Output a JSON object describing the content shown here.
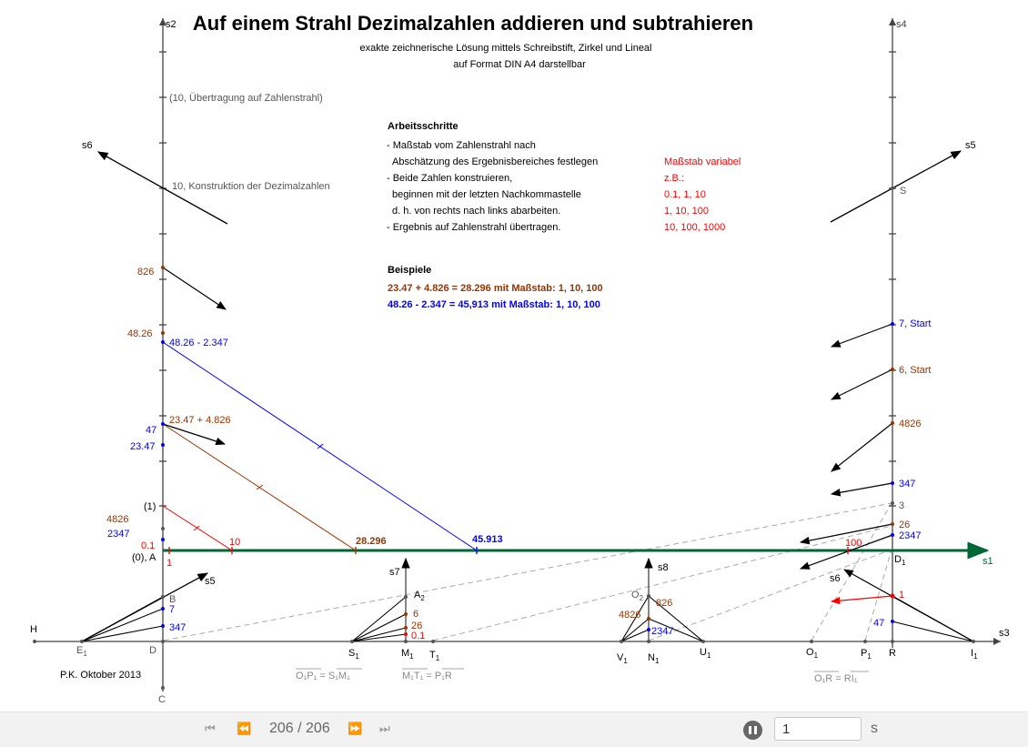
{
  "header": {
    "title": "Auf einem Strahl Dezimalzahlen addieren und subtrahieren",
    "subtitle1": "exakte zeichnerische Lösung mittels Schreibstift, Zirkel und Lineal",
    "subtitle2": "auf Format DIN A4 darstellbar"
  },
  "steps": {
    "heading": "Arbeitsschritte",
    "lines": [
      "- Maßstab vom Zahlenstrahl nach",
      "  Abschätzung des Ergebnisbereiches festlegen",
      "- Beide Zahlen konstruieren,",
      "  beginnen mit der letzten Nachkommastelle",
      "  d. h. von rechts nach links abarbeiten.",
      "- Ergebnis auf Zahlenstrahl übertragen."
    ],
    "scale_lines": [
      "Maßstab variabel",
      "z.B.:",
      "0.1, 1, 10",
      "1, 10, 100",
      "10, 100, 1000"
    ]
  },
  "examples": {
    "heading": "Beispiele",
    "ex1": "23.47 + 4.826 = 28.296 mit Maßstab:  1, 10, 100",
    "ex2": "48.26 - 2.347 = 45,913 mit Maßstab: 1, 10, 100"
  },
  "axis_labels": {
    "s1": "s1",
    "s2": "s2",
    "s3": "s3",
    "s4": "s4",
    "s5": "s5",
    "s6": "s6",
    "s7": "s7",
    "s8": "s8"
  },
  "left_labels": {
    "transfer": "(10, Übertragung auf Zahlenstrahl)",
    "construct": "10, Konstruktion der Dezimalzahlen",
    "n826": "826",
    "n4826a": "48.26",
    "diff": "48.26 - 2.347",
    "sum": "23.47 + 4.826",
    "n47": "47",
    "n2347a": "23.47",
    "one_paren": "(1)",
    "n4826": "4826",
    "n2347": "2347",
    "n01": "0.1",
    "zeroA": "(0), A",
    "n1": "1",
    "n10": "10",
    "B": "B",
    "n7": "7",
    "n347": "347",
    "D": "D",
    "C": "C",
    "H": "H",
    "E1": "E",
    "sub1": "1"
  },
  "results": {
    "r1": "28.296",
    "r2": "45.913"
  },
  "middle_labels": {
    "A2": "A",
    "sub2": "2",
    "n6": "6",
    "n26": "26",
    "n01": "0.1",
    "S1": "S",
    "M1": "M",
    "T1": "T",
    "O2": "O",
    "n826": "826",
    "n4826": "4826",
    "n2347": "2347",
    "V1": "V",
    "N1": "N",
    "U1": "U"
  },
  "right_labels": {
    "S": "S",
    "start7": "7, Start",
    "start6": "6, Start",
    "n4826": "4826",
    "n347": "347",
    "n3": "3",
    "n26": "26",
    "n2347": "2347",
    "n100": "100",
    "D1": "D",
    "n1": "1",
    "n47": "47",
    "O1": "O",
    "P1": "P",
    "R": "R",
    "I1": "I"
  },
  "formulas": {
    "f1": "O₁P₁ = S₁M₁",
    "f2": "M₁T₁ = P₁R",
    "f3": "O₁R = RI₁"
  },
  "credit": "P.K. Oktober 2013",
  "player": {
    "counter": "206 / 206",
    "speed_value": "1",
    "unit": "s"
  },
  "colors": {
    "brown": "#993300",
    "blue": "#0000ff",
    "red": "#ff0000",
    "green": "#006633",
    "gray": "#999999"
  }
}
